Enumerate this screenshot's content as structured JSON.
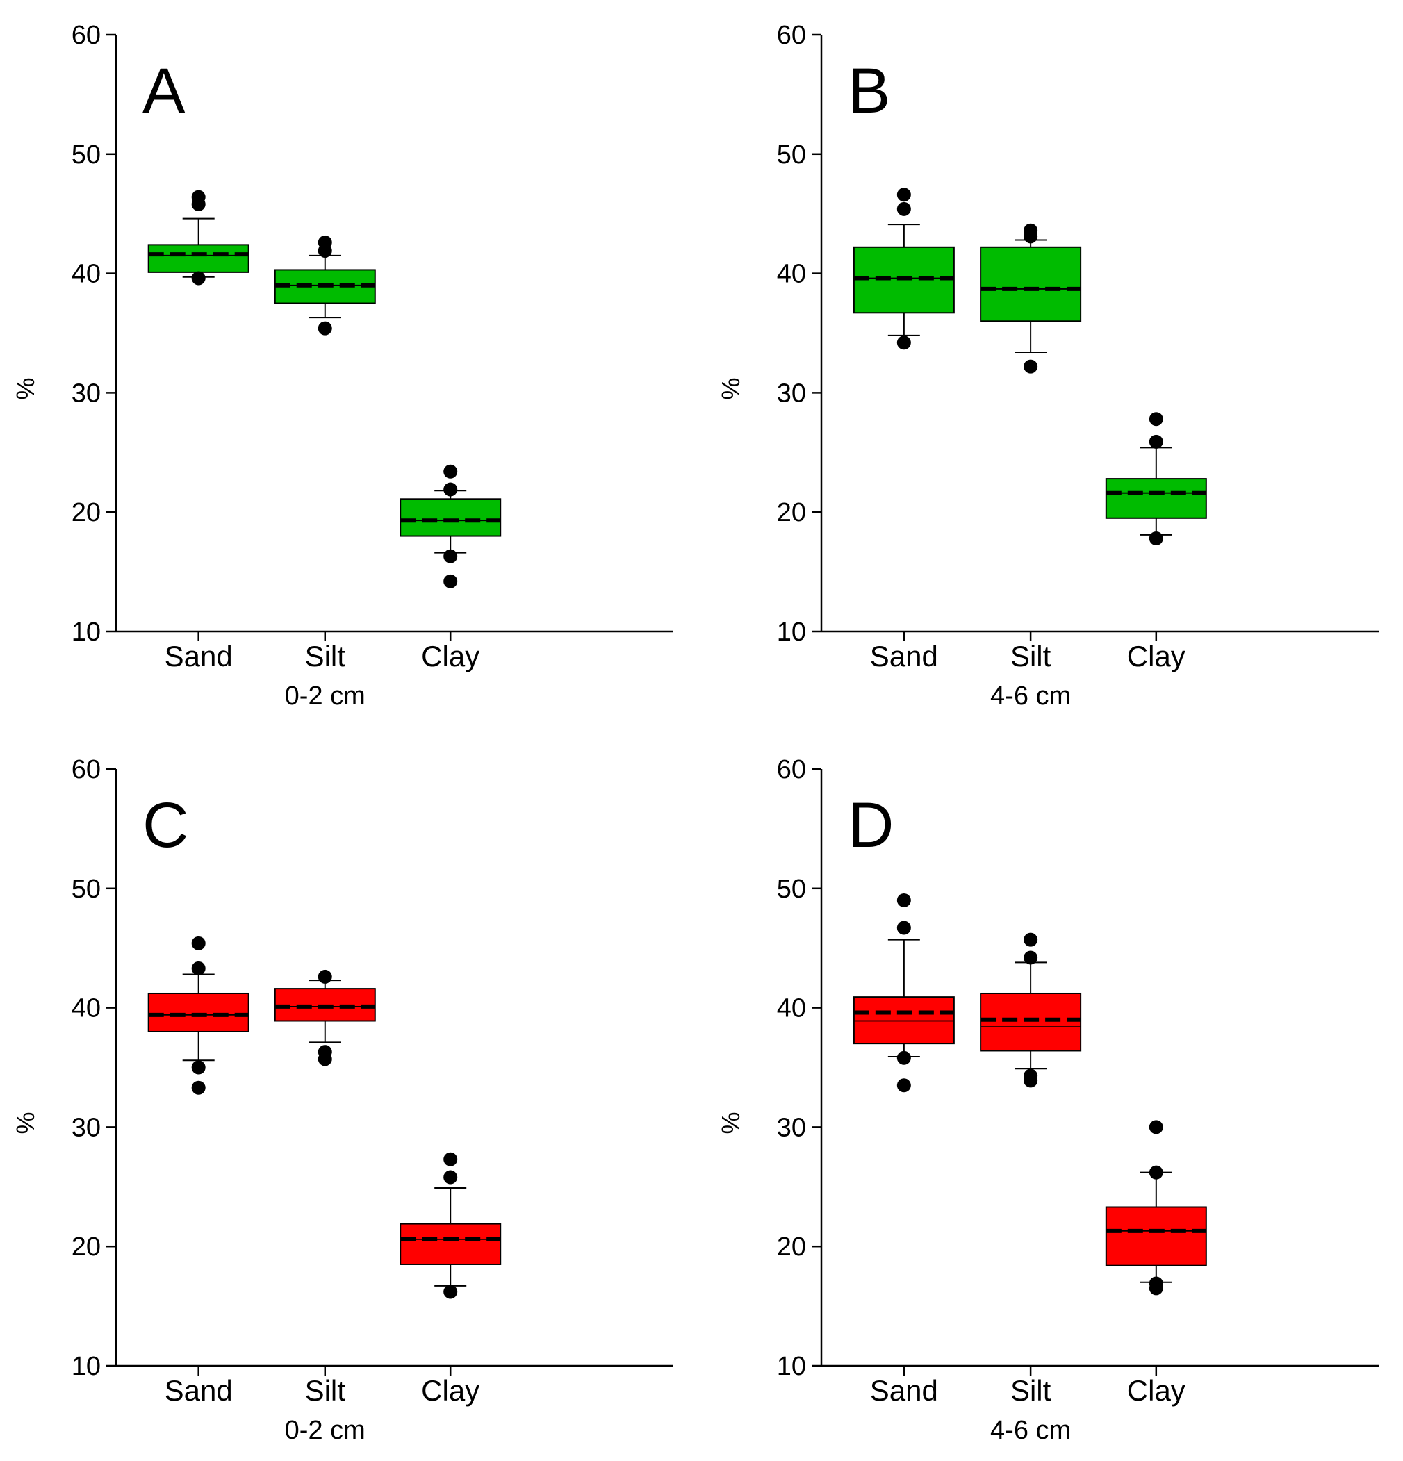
{
  "chart_data": [
    {
      "type": "box",
      "panel_label": "A",
      "xlabel": "0-2 cm",
      "ylabel": "%",
      "ylim": [
        10,
        60
      ],
      "yticks": [
        10,
        20,
        30,
        40,
        50,
        60
      ],
      "categories": [
        "Sand",
        "Silt",
        "Clay"
      ],
      "box_color": "#00bb00",
      "boxes": [
        {
          "q1": 40.1,
          "median": 41.5,
          "mean": 41.6,
          "q3": 42.4,
          "whisker_low": 39.7,
          "whisker_high": 44.6,
          "outliers": [
            39.6,
            45.8,
            46.4
          ]
        },
        {
          "q1": 37.5,
          "median": 39.0,
          "mean": 39.0,
          "q3": 40.3,
          "whisker_low": 36.3,
          "whisker_high": 41.5,
          "outliers": [
            35.4,
            41.9,
            42.6
          ]
        },
        {
          "q1": 18.0,
          "median": 19.3,
          "mean": 19.3,
          "q3": 21.1,
          "whisker_low": 16.6,
          "whisker_high": 21.8,
          "outliers": [
            14.2,
            16.3,
            21.9,
            23.4
          ]
        }
      ]
    },
    {
      "type": "box",
      "panel_label": "B",
      "xlabel": "4-6 cm",
      "ylabel": "%",
      "ylim": [
        10,
        60
      ],
      "yticks": [
        10,
        20,
        30,
        40,
        50,
        60
      ],
      "categories": [
        "Sand",
        "Silt",
        "Clay"
      ],
      "box_color": "#00bb00",
      "boxes": [
        {
          "q1": 36.7,
          "median": 39.6,
          "mean": 39.6,
          "q3": 42.2,
          "whisker_low": 34.8,
          "whisker_high": 44.1,
          "outliers": [
            34.2,
            45.4,
            46.6
          ]
        },
        {
          "q1": 36.0,
          "median": 38.7,
          "mean": 38.7,
          "q3": 42.2,
          "whisker_low": 33.4,
          "whisker_high": 42.8,
          "outliers": [
            32.2,
            43.1,
            43.6
          ]
        },
        {
          "q1": 19.5,
          "median": 21.6,
          "mean": 21.6,
          "q3": 22.8,
          "whisker_low": 18.1,
          "whisker_high": 25.4,
          "outliers": [
            17.8,
            25.9,
            27.8
          ]
        }
      ]
    },
    {
      "type": "box",
      "panel_label": "C",
      "xlabel": "0-2 cm",
      "ylabel": "%",
      "ylim": [
        10,
        60
      ],
      "yticks": [
        10,
        20,
        30,
        40,
        50,
        60
      ],
      "categories": [
        "Sand",
        "Silt",
        "Clay"
      ],
      "box_color": "#ff0000",
      "boxes": [
        {
          "q1": 38.0,
          "median": 39.4,
          "mean": 39.4,
          "q3": 41.2,
          "whisker_low": 35.6,
          "whisker_high": 42.8,
          "outliers": [
            33.3,
            35.0,
            43.3,
            45.4
          ]
        },
        {
          "q1": 38.9,
          "median": 40.1,
          "mean": 40.1,
          "q3": 41.6,
          "whisker_low": 37.1,
          "whisker_high": 42.3,
          "outliers": [
            35.7,
            36.3,
            42.6
          ]
        },
        {
          "q1": 18.5,
          "median": 20.6,
          "mean": 20.6,
          "q3": 21.9,
          "whisker_low": 16.7,
          "whisker_high": 24.9,
          "outliers": [
            16.2,
            25.8,
            27.3
          ]
        }
      ]
    },
    {
      "type": "box",
      "panel_label": "D",
      "xlabel": "4-6 cm",
      "ylabel": "%",
      "ylim": [
        10,
        60
      ],
      "yticks": [
        10,
        20,
        30,
        40,
        50,
        60
      ],
      "categories": [
        "Sand",
        "Silt",
        "Clay"
      ],
      "box_color": "#ff0000",
      "boxes": [
        {
          "q1": 37.0,
          "median": 38.9,
          "mean": 39.6,
          "q3": 40.9,
          "whisker_low": 35.9,
          "whisker_high": 45.7,
          "outliers": [
            33.5,
            35.8,
            46.7,
            49.0
          ]
        },
        {
          "q1": 36.4,
          "median": 38.4,
          "mean": 39.0,
          "q3": 41.2,
          "whisker_low": 34.9,
          "whisker_high": 43.8,
          "outliers": [
            33.9,
            34.3,
            44.2,
            45.7
          ]
        },
        {
          "q1": 18.4,
          "median": 21.3,
          "mean": 21.3,
          "q3": 23.3,
          "whisker_low": 17.0,
          "whisker_high": 26.2,
          "outliers": [
            16.5,
            16.9,
            26.2,
            30.0
          ]
        }
      ]
    }
  ]
}
